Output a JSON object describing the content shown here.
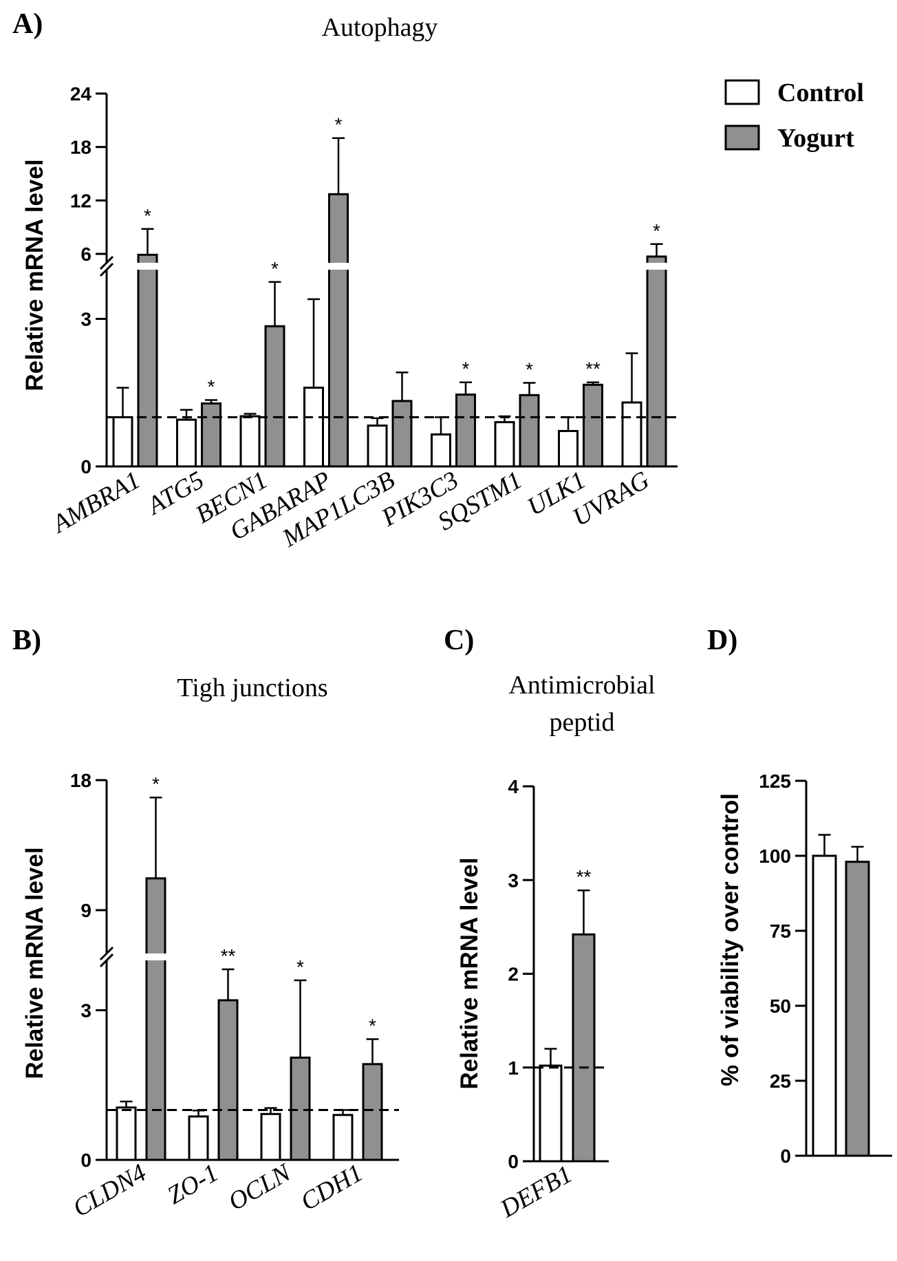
{
  "panels": {
    "A": {
      "letter": "A)",
      "title": "Autophagy"
    },
    "B": {
      "letter": "B)",
      "title": "Tigh junctions"
    },
    "C": {
      "letter": "C)",
      "title_line1": "Antimicrobial",
      "title_line2": "peptid"
    },
    "D": {
      "letter": "D)"
    }
  },
  "legend": {
    "control": "Control",
    "yogurt": "Yogurt"
  },
  "colors": {
    "control_fill": "#ffffff",
    "yogurt_fill": "#909090",
    "edge": "#000000"
  },
  "chart_data": [
    {
      "id": "A",
      "type": "bar",
      "title": "Autophagy",
      "ylabel": "Relative mRNA level",
      "broken_axis": true,
      "lower_range": [
        0,
        4
      ],
      "upper_range": [
        5,
        24
      ],
      "lower_ticks": [
        "0",
        "3"
      ],
      "upper_ticks": [
        "6",
        "12",
        "18",
        "24"
      ],
      "reference_line": 1,
      "categories": [
        "AMBRA1",
        "ATG5",
        "BECN1",
        "GABARAP",
        "MAP1LC3B",
        "PIK3C3",
        "SQSTM1",
        "ULK1",
        "UVRAG"
      ],
      "series": [
        {
          "name": "Control",
          "values": [
            1.0,
            0.95,
            1.02,
            1.6,
            0.83,
            0.65,
            0.9,
            0.72,
            1.3
          ],
          "errors": [
            0.6,
            0.2,
            0.05,
            1.8,
            0.15,
            0.35,
            0.12,
            0.28,
            1.0
          ]
        },
        {
          "name": "Yogurt",
          "values": [
            5.9,
            1.28,
            2.85,
            12.7,
            1.33,
            1.46,
            1.45,
            1.66,
            5.7
          ],
          "errors": [
            2.9,
            0.07,
            0.9,
            6.3,
            0.58,
            0.25,
            0.25,
            0.05,
            1.4
          ]
        }
      ],
      "significance": [
        "*",
        "*",
        "*",
        "*",
        "",
        "*",
        "*",
        "**",
        "*"
      ]
    },
    {
      "id": "B",
      "type": "bar",
      "title": "Tigh junctions",
      "ylabel": "Relative mRNA level",
      "broken_axis": true,
      "lower_range": [
        0,
        4
      ],
      "upper_range": [
        6,
        18
      ],
      "lower_ticks": [
        "0",
        "3"
      ],
      "upper_ticks": [
        "9",
        "18"
      ],
      "reference_line": 1,
      "categories": [
        "CLDN4",
        "ZO-1",
        "OCLN",
        "CDH1"
      ],
      "series": [
        {
          "name": "Control",
          "values": [
            1.05,
            0.87,
            0.92,
            0.9
          ],
          "errors": [
            0.12,
            0.12,
            0.12,
            0.1
          ]
        },
        {
          "name": "Yogurt",
          "values": [
            11.2,
            3.2,
            2.05,
            1.92
          ],
          "errors": [
            5.6,
            0.62,
            1.55,
            0.5
          ]
        }
      ],
      "significance": [
        "*",
        "**",
        "*",
        "*"
      ]
    },
    {
      "id": "C",
      "type": "bar",
      "title": "Antimicrobial peptid",
      "ylabel": "Relative mRNA level",
      "ylim": [
        0,
        4
      ],
      "ticks": [
        "0",
        "1",
        "2",
        "3",
        "4"
      ],
      "reference_line": 1,
      "categories": [
        "DEFB1"
      ],
      "series": [
        {
          "name": "Control",
          "values": [
            1.02
          ],
          "errors": [
            0.18
          ]
        },
        {
          "name": "Yogurt",
          "values": [
            2.42
          ],
          "errors": [
            0.47
          ]
        }
      ],
      "significance": [
        "**"
      ]
    },
    {
      "id": "D",
      "type": "bar",
      "ylabel": "% of viability over control",
      "ylim": [
        0,
        125
      ],
      "ticks": [
        "0",
        "25",
        "50",
        "75",
        "100",
        "125"
      ],
      "categories": [
        ""
      ],
      "series": [
        {
          "name": "Control",
          "values": [
            100
          ],
          "errors": [
            7
          ]
        },
        {
          "name": "Yogurt",
          "values": [
            98
          ],
          "errors": [
            5
          ]
        }
      ],
      "significance": [
        ""
      ]
    }
  ]
}
